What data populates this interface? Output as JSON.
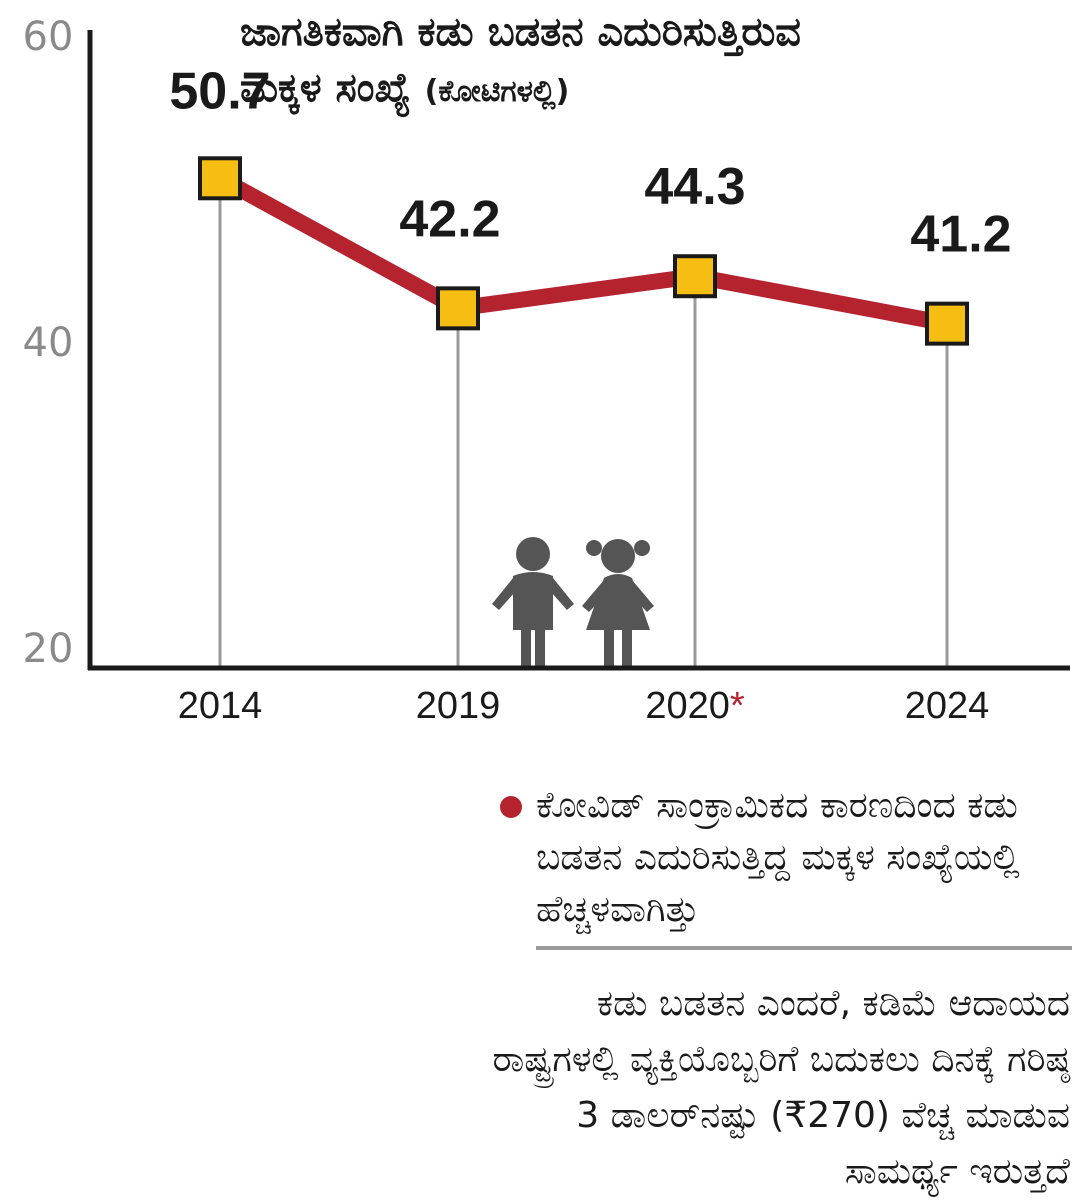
{
  "chart_data": {
    "type": "line",
    "title": "ಜಾಗತಿಕವಾಗಿ ಕಡು ಬಡತನ ಎದುರಿಸುತ್ತಿರುವ",
    "subtitle": "ಮಕ್ಕಳ ಸಂಖ್ಯೆ",
    "unit": "(ಕೋಟಿಗಳಲ್ಲಿ)",
    "categories": [
      "2014",
      "2019",
      "2020",
      "2024"
    ],
    "category_markers": [
      "",
      "",
      "*",
      ""
    ],
    "series": [
      {
        "values": [
          50.7,
          42.2,
          44.3,
          41.2
        ]
      }
    ],
    "data_labels": [
      "50.7",
      "42.2",
      "44.3",
      "41.2"
    ],
    "y_ticks": [
      "60",
      "40",
      "20"
    ],
    "ylim": [
      20,
      60
    ],
    "grid": false,
    "colors": {
      "line": "#b5232f",
      "marker": "#f6bd12",
      "marker_border": "#1a1a1a",
      "axis": "#1a1a1a",
      "drop_line": "#9a9a9a",
      "tick_text": "#8a8a8a",
      "icon": "#555555"
    }
  },
  "note": {
    "marker_color": "#b5232f",
    "text": "ಕೋವಿಡ್ ಸಾಂಕ್ರಾಮಿಕದ ಕಾರಣದಿಂದ ಕಡು ಬಡತನ ಎದುರಿಸುತ್ತಿದ್ದ ಮಕ್ಕಳ ಸಂಖ್ಯೆಯಲ್ಲಿ ಹೆಚ್ಚಳವಾಗಿತ್ತು"
  },
  "definition": {
    "text": "ಕಡು ಬಡತನ ಎಂದರೆ, ಕಡಿಮೆ ಆದಾಯದ ರಾಷ್ಟ್ರಗಳಲ್ಲಿ ವ್ಯಕ್ತಿಯೊಬ್ಬರಿಗೆ ಬದುಕಲು ದಿನಕ್ಕೆ ಗರಿಷ್ಠ 3 ಡಾಲರ್‌ನಷ್ಟು (₹270) ವೆಚ್ಚ ಮಾಡುವ ಸಾಮರ್ಥ್ಯ ಇರುತ್ತದೆ"
  },
  "illustration": {
    "icon": "children-icon"
  }
}
